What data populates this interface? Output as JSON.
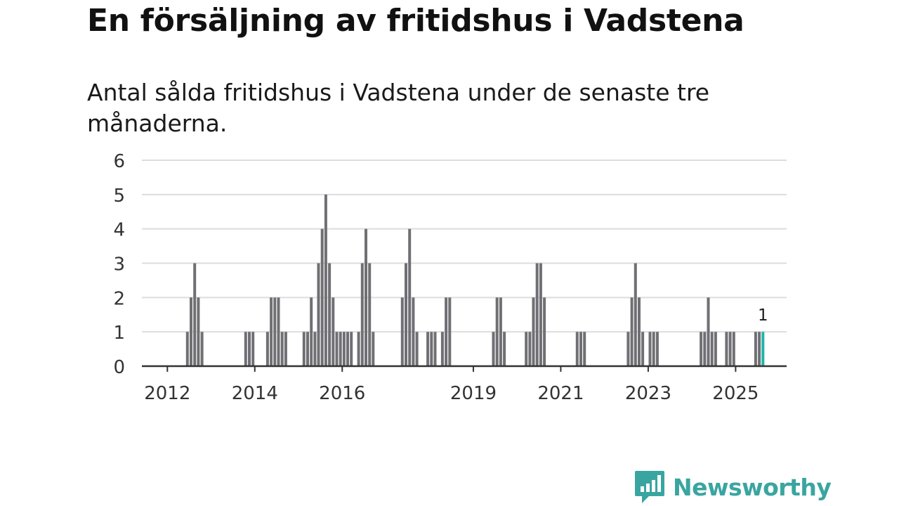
{
  "title": "En försäljning av fritidshus i Vadstena",
  "subtitle": "Antal sålda fritidshus i Vadstena under de senaste tre månaderna.",
  "brand": {
    "name": "Newsworthy",
    "icon": "bar-chart-speech-bubble-icon"
  },
  "colors": {
    "bar": "#6f6f74",
    "highlight": "#1fb5a8",
    "grid": "#dddddd",
    "axis": "#333333",
    "brand": "#3aa5a0"
  },
  "chart_data": {
    "type": "bar",
    "title": "",
    "xlabel": "",
    "ylabel": "",
    "ylim": [
      0,
      6
    ],
    "xlim": [
      "2011-06",
      "2026-03"
    ],
    "yticks": [
      "0",
      "1",
      "2",
      "3",
      "4",
      "5",
      "6"
    ],
    "xticks": [
      {
        "label": "2012",
        "date": "2012-01"
      },
      {
        "label": "2014",
        "date": "2014-01"
      },
      {
        "label": "2016",
        "date": "2016-01"
      },
      {
        "label": "2019",
        "date": "2019-01"
      },
      {
        "label": "2021",
        "date": "2021-01"
      },
      {
        "label": "2023",
        "date": "2023-01"
      },
      {
        "label": "2025",
        "date": "2025-01"
      }
    ],
    "grid": true,
    "legend": "none",
    "series": [
      {
        "x": [
          "2012-06",
          "2012-07",
          "2012-08",
          "2012-09",
          "2012-10",
          "2013-10",
          "2013-11",
          "2013-12",
          "2014-04",
          "2014-05",
          "2014-06",
          "2014-07",
          "2014-08",
          "2014-09",
          "2015-02",
          "2015-03",
          "2015-04",
          "2015-05",
          "2015-06",
          "2015-07",
          "2015-08",
          "2015-09",
          "2015-10",
          "2015-11",
          "2015-12",
          "2016-01",
          "2016-02",
          "2016-03",
          "2016-05",
          "2016-06",
          "2016-07",
          "2016-08",
          "2016-09",
          "2017-05",
          "2017-06",
          "2017-07",
          "2017-08",
          "2017-09",
          "2017-12",
          "2018-01",
          "2018-02",
          "2018-04",
          "2018-05",
          "2018-06",
          "2019-06",
          "2019-07",
          "2019-08",
          "2019-09",
          "2020-03",
          "2020-04",
          "2020-05",
          "2020-06",
          "2020-07",
          "2020-08",
          "2021-05",
          "2021-06",
          "2021-07",
          "2022-07",
          "2022-08",
          "2022-09",
          "2022-10",
          "2022-11",
          "2023-01",
          "2023-02",
          "2023-03",
          "2024-03",
          "2024-04",
          "2024-05",
          "2024-06",
          "2024-07",
          "2024-10",
          "2024-11",
          "2024-12",
          "2025-06",
          "2025-07",
          "2025-08"
        ],
        "values": [
          1,
          2,
          3,
          2,
          1,
          1,
          1,
          1,
          1,
          2,
          2,
          2,
          1,
          1,
          1,
          1,
          2,
          1,
          3,
          4,
          5,
          3,
          2,
          1,
          1,
          1,
          1,
          1,
          1,
          3,
          4,
          3,
          1,
          2,
          3,
          4,
          2,
          1,
          1,
          1,
          1,
          1,
          2,
          2,
          1,
          2,
          2,
          1,
          1,
          1,
          2,
          3,
          3,
          2,
          1,
          1,
          1,
          1,
          2,
          3,
          2,
          1,
          1,
          1,
          1,
          1,
          1,
          2,
          1,
          1,
          1,
          1,
          1,
          1,
          1,
          1
        ]
      }
    ],
    "annotations": [
      {
        "x": "2025-08",
        "text": "1"
      }
    ]
  }
}
